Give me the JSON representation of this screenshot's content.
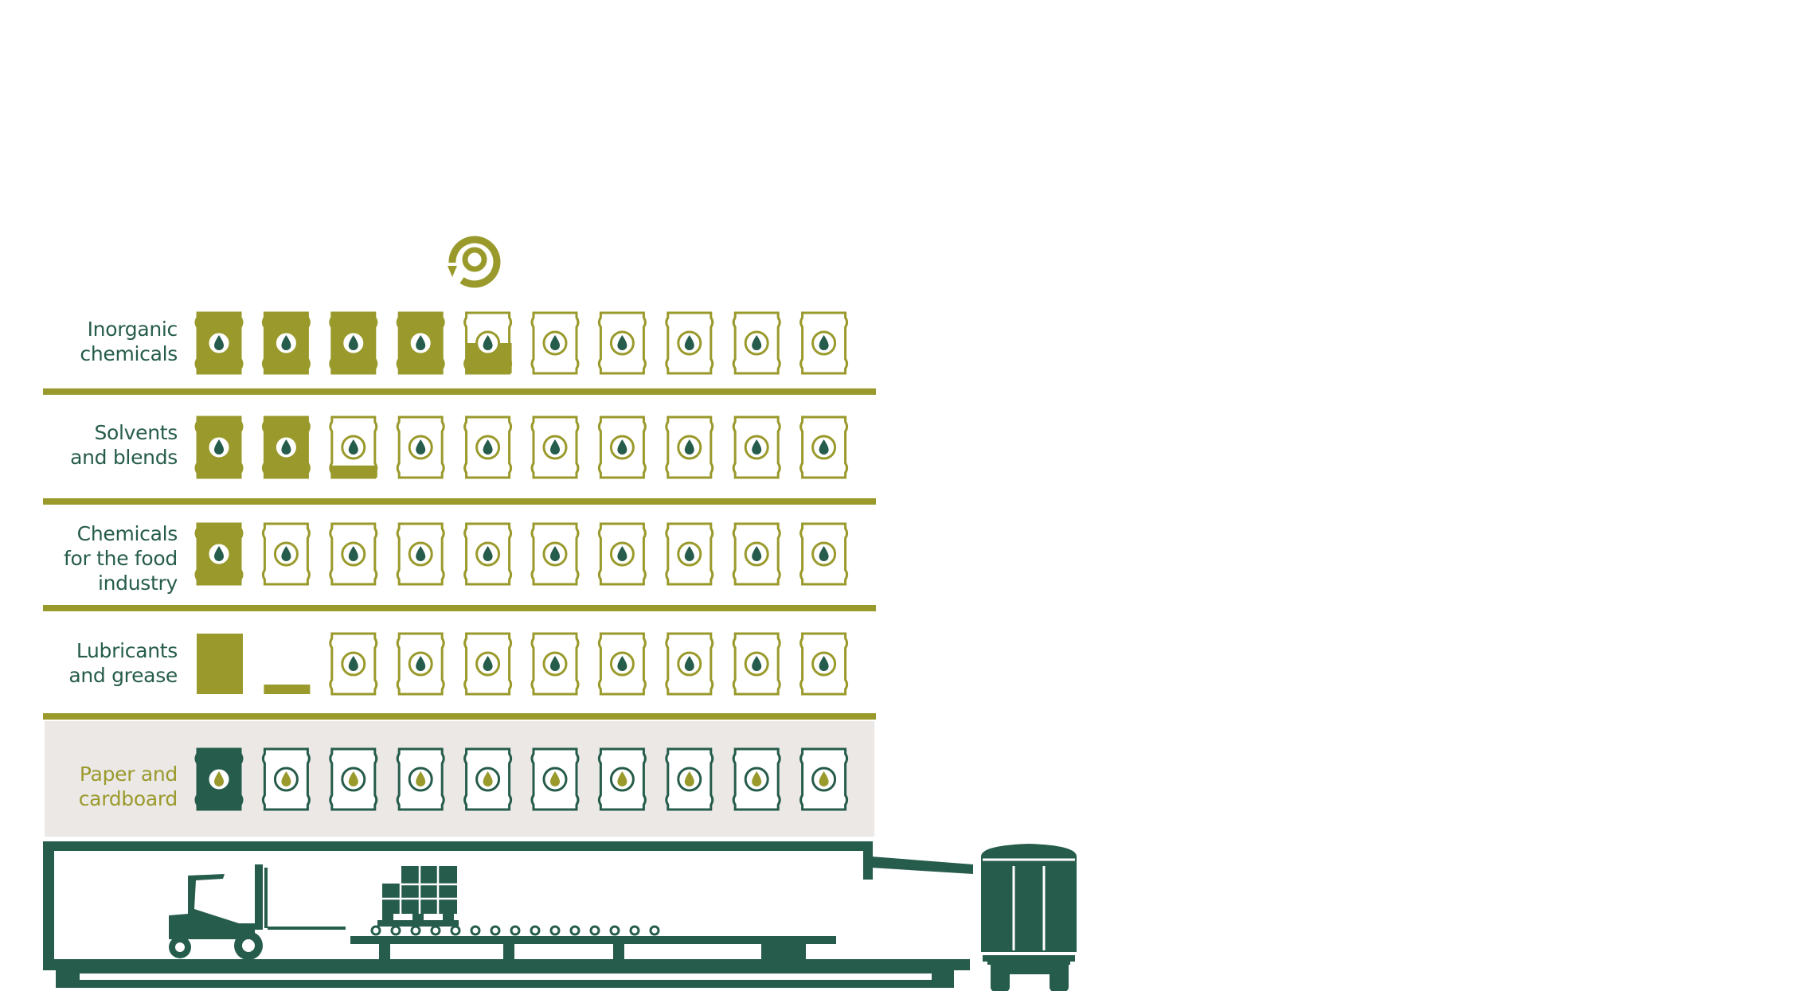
{
  "colors": {
    "olive": "#9a9a2c",
    "dark_green": "#265c4b",
    "panel_grey": "#ebe8e6",
    "white": "#ffffff"
  },
  "loading_icon": "circular-arrow-icon",
  "barrels_per_row": 10,
  "rows": [
    {
      "id": "inorganic",
      "label_lines": [
        "Inorganic",
        "chemicals"
      ],
      "fills": [
        1,
        1,
        1,
        1,
        0.5,
        0,
        0,
        0,
        0,
        0
      ],
      "icon": "oil-drop-icon"
    },
    {
      "id": "solvents",
      "label_lines": [
        "Solvents",
        "and blends"
      ],
      "fills": [
        1,
        1,
        0.2,
        0,
        0,
        0,
        0,
        0,
        0,
        0
      ],
      "icon": "oil-drop-icon"
    },
    {
      "id": "food",
      "label_lines": [
        "Chemicals",
        "for the food",
        "industry"
      ],
      "fills": [
        1,
        0,
        0,
        0,
        0,
        0,
        0,
        0,
        0,
        0
      ],
      "icon": "oil-drop-icon"
    },
    {
      "id": "lubricants",
      "label_lines": [
        "Lubricants",
        "and grease"
      ],
      "fills": [
        1,
        0.2,
        0,
        0,
        0,
        0,
        0,
        0,
        0,
        0
      ],
      "icon": "oil-drop-icon"
    },
    {
      "id": "paper",
      "label_lines": [
        "Paper and",
        "cardboard"
      ],
      "fills": [
        1,
        0,
        0,
        0,
        0,
        0,
        0,
        0,
        0,
        0
      ],
      "icon": "oil-drop-icon",
      "highlighted": true
    }
  ],
  "warehouse": {
    "icons": [
      "forklift-icon",
      "pallet-boxes-icon",
      "conveyor-roller-icon",
      "truck-trailer-icon"
    ]
  }
}
